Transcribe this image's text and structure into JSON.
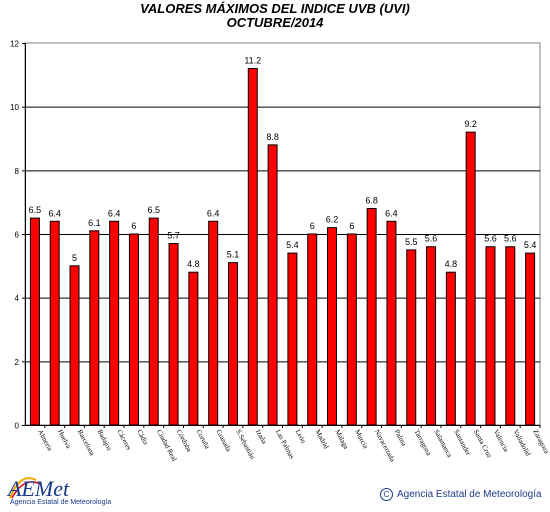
{
  "title": "VALORES MÁXIMOS DEL INDICE UVB (UVI)",
  "subtitle": "OCTUBRE/2014",
  "chart_data": {
    "type": "bar",
    "title": "VALORES MÁXIMOS DEL INDICE UVB (UVI)",
    "subtitle": "OCTUBRE/2014",
    "xlabel": "",
    "ylabel": "",
    "ylim": [
      0,
      12
    ],
    "yticks": [
      0,
      2,
      4,
      6,
      8,
      10,
      12
    ],
    "grid": true,
    "legend": "none",
    "bar_color": "#ff0000",
    "categories": [
      "Almería",
      "Huelva",
      "Barcelona",
      "Badajoz",
      "Cáceres",
      "Cádiz",
      "Ciudad Real",
      "Córdoba",
      "Coruña",
      "Granada",
      "S.Sebastián",
      "Izaña",
      "Las Palmas",
      "León",
      "Madrid",
      "Málaga",
      "Murcia",
      "Navacerrada",
      "Palma",
      "Tarragona",
      "Salamanca",
      "Santander",
      "Santa Cruz",
      "Valencia",
      "Valladolid",
      "Zaragoza"
    ],
    "values": [
      6.5,
      6.4,
      5,
      6.1,
      6.4,
      6,
      6.5,
      5.7,
      4.8,
      6.4,
      5.1,
      11.2,
      8.8,
      5.4,
      6,
      6.2,
      6,
      6.8,
      6.4,
      5.5,
      5.6,
      4.8,
      9.2,
      5.6,
      5.6,
      5.4
    ],
    "value_labels": [
      "6.5",
      "6.4",
      "5",
      "6.1",
      "6.4",
      "6",
      "6.5",
      "5.7",
      "4.8",
      "6.4",
      "5.1",
      "11.2",
      "8.8",
      "5.4",
      "6",
      "6.2",
      "6",
      "6.8",
      "6.4",
      "5.5",
      "5.6",
      "4.8",
      "9.2",
      "5.6",
      "5.6",
      "5.4"
    ]
  },
  "logo": {
    "brand": "AEMet",
    "tagline": "Agencia Estatal de Meteorología"
  },
  "copyright": {
    "symbol": "C",
    "text": "Agencia Estatal de Meteorología"
  }
}
